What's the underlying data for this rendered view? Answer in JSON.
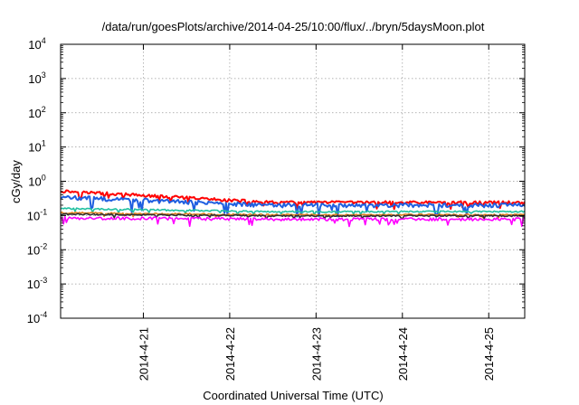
{
  "chart_data": {
    "type": "line",
    "title": "/data/run/goesPlots/archive/2014-04-25/10:00/flux/../bryn/5daysMoon.plot",
    "xlabel": "Coordinated Universal Time (UTC)",
    "ylabel": "cGy/day",
    "y_scale": "log",
    "ylim": [
      0.0001,
      10000
    ],
    "yticks": [
      {
        "base": "10",
        "exp": "4",
        "value": 10000
      },
      {
        "base": "10",
        "exp": "3",
        "value": 1000
      },
      {
        "base": "10",
        "exp": "2",
        "value": 100
      },
      {
        "base": "10",
        "exp": "1",
        "value": 10
      },
      {
        "base": "10",
        "exp": "0",
        "value": 1
      },
      {
        "base": "10",
        "exp": "-1",
        "value": 0.1
      },
      {
        "base": "10",
        "exp": "-2",
        "value": 0.01
      },
      {
        "base": "10",
        "exp": "-3",
        "value": 0.001
      },
      {
        "base": "10",
        "exp": "-4",
        "value": 0.0001
      }
    ],
    "xlim": [
      "2014-04-20T01:00",
      "2014-04-25T10:00"
    ],
    "xticks": [
      {
        "label": "2014-4-21",
        "date": "2014-04-21T00:00"
      },
      {
        "label": "2014-4-22",
        "date": "2014-04-22T00:00"
      },
      {
        "label": "2014-4-23",
        "date": "2014-04-23T00:00"
      },
      {
        "label": "2014-4-24",
        "date": "2014-04-24T00:00"
      },
      {
        "label": "2014-4-25",
        "date": "2014-04-25T00:00"
      }
    ],
    "grid": true,
    "series": [
      {
        "color": "#ff0000",
        "start": 0.52,
        "end": 0.24,
        "noise": 0.1
      },
      {
        "color": "#1f5fe0",
        "start": 0.34,
        "end": 0.2,
        "noise": 0.14
      },
      {
        "color": "#20c0a0",
        "start": 0.16,
        "end": 0.13,
        "noise": 0.05
      },
      {
        "color": "#e08020",
        "start": 0.12,
        "end": 0.105,
        "noise": 0.05
      },
      {
        "color": "#303030",
        "start": 0.11,
        "end": 0.098,
        "noise": 0.05
      },
      {
        "color": "#ff00ff",
        "start": 0.085,
        "end": 0.078,
        "noise": 0.1
      }
    ]
  }
}
